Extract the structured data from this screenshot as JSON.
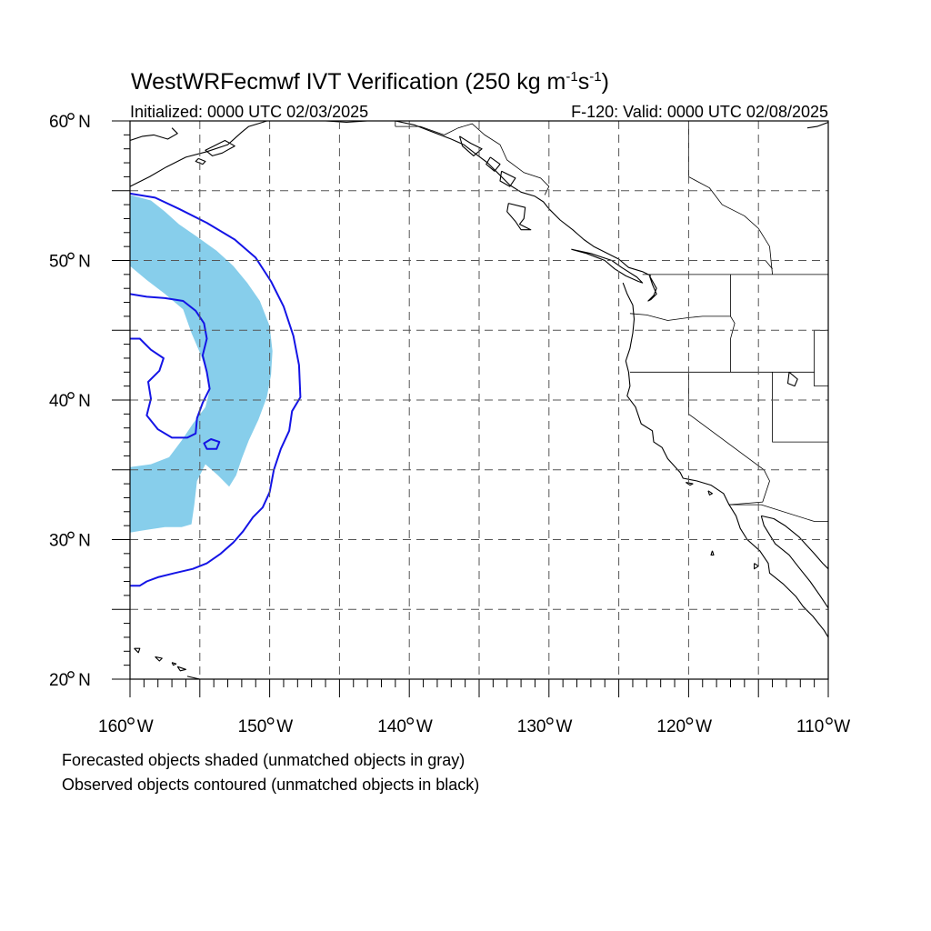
{
  "title": {
    "main": "WestWRFecmwf IVT Verification (250 kg m",
    "exp1": "-1",
    "mid": "s",
    "exp2": "-1",
    "close": ")"
  },
  "init_label": "Initialized: 0000 UTC 02/03/2025",
  "valid_label": "F-120: Valid: 0000 UTC 02/08/2025",
  "lat_ticks": [
    {
      "value": 60,
      "label": "60",
      "suffix": "N"
    },
    {
      "value": 50,
      "label": "50",
      "suffix": "N"
    },
    {
      "value": 40,
      "label": "40",
      "suffix": "N"
    },
    {
      "value": 30,
      "label": "30",
      "suffix": "N"
    },
    {
      "value": 20,
      "label": "20",
      "suffix": "N"
    }
  ],
  "lon_ticks": [
    {
      "value": -160,
      "label": "160",
      "suffix": "W"
    },
    {
      "value": -150,
      "label": "150",
      "suffix": "W"
    },
    {
      "value": -140,
      "label": "140",
      "suffix": "W"
    },
    {
      "value": -130,
      "label": "130",
      "suffix": "W"
    },
    {
      "value": -120,
      "label": "120",
      "suffix": "W"
    },
    {
      "value": -110,
      "label": "110",
      "suffix": "W"
    }
  ],
  "extent": {
    "lon": [
      -160,
      -110
    ],
    "lat": [
      20,
      60
    ]
  },
  "colors": {
    "forecast_fill": "#87CEEB",
    "observed_contour": "#1414E6",
    "coastline": "#000000",
    "gridline": "#555555"
  },
  "forecast_object": [
    [
      -160,
      54.7
    ],
    [
      -158.5,
      54.3
    ],
    [
      -157.5,
      53.5
    ],
    [
      -156.5,
      52.6
    ],
    [
      -155.2,
      51.7
    ],
    [
      -153.8,
      50.7
    ],
    [
      -152.6,
      49.6
    ],
    [
      -151.6,
      48.4
    ],
    [
      -150.7,
      47.1
    ],
    [
      -150.0,
      45.3
    ],
    [
      -149.8,
      43.5
    ],
    [
      -149.9,
      41.8
    ],
    [
      -150.2,
      40.2
    ],
    [
      -150.8,
      38.6
    ],
    [
      -151.5,
      37.1
    ],
    [
      -152.0,
      35.8
    ],
    [
      -152.4,
      34.6
    ],
    [
      -152.9,
      33.8
    ],
    [
      -153.7,
      34.6
    ],
    [
      -154.6,
      35.4
    ],
    [
      -155.2,
      34.2
    ],
    [
      -155.4,
      32.5
    ],
    [
      -155.6,
      31.1
    ],
    [
      -156.3,
      30.9
    ],
    [
      -157.5,
      30.9
    ],
    [
      -158.8,
      30.7
    ],
    [
      -160,
      30.5
    ],
    [
      -160,
      35.2
    ],
    [
      -158.5,
      35.4
    ],
    [
      -157.2,
      35.9
    ],
    [
      -156.3,
      37.1
    ],
    [
      -155.5,
      38.3
    ],
    [
      -154.6,
      39.5
    ],
    [
      -154.3,
      40.7
    ],
    [
      -154.5,
      42.0
    ],
    [
      -155.0,
      43.4
    ],
    [
      -155.6,
      44.8
    ],
    [
      -156.2,
      46.5
    ],
    [
      -157.5,
      47.6
    ],
    [
      -158.8,
      48.6
    ],
    [
      -160,
      49.6
    ]
  ],
  "observed_objects": [
    {
      "closed": false,
      "points": [
        [
          -160,
          54.8
        ],
        [
          -158.2,
          54.5
        ],
        [
          -156.5,
          53.7
        ],
        [
          -154.5,
          52.7
        ],
        [
          -152.5,
          51.5
        ],
        [
          -151.0,
          50.2
        ],
        [
          -149.9,
          48.5
        ],
        [
          -149.0,
          46.7
        ],
        [
          -148.3,
          44.6
        ],
        [
          -147.9,
          42.5
        ],
        [
          -147.8,
          40.2
        ],
        [
          -148.4,
          39.2
        ],
        [
          -148.6,
          37.8
        ],
        [
          -149.2,
          36.5
        ],
        [
          -149.7,
          35.0
        ],
        [
          -150.0,
          33.4
        ],
        [
          -150.5,
          32.3
        ],
        [
          -151.2,
          31.6
        ],
        [
          -151.9,
          30.6
        ],
        [
          -152.6,
          29.8
        ],
        [
          -153.5,
          29.0
        ],
        [
          -154.5,
          28.3
        ],
        [
          -155.5,
          27.9
        ],
        [
          -156.8,
          27.6
        ],
        [
          -158.0,
          27.3
        ],
        [
          -158.8,
          27.0
        ],
        [
          -159.3,
          26.7
        ],
        [
          -160,
          26.7
        ]
      ]
    },
    {
      "closed": false,
      "points": [
        [
          -160,
          47.6
        ],
        [
          -158.8,
          47.4
        ],
        [
          -157.5,
          47.3
        ],
        [
          -156.2,
          47.1
        ],
        [
          -155.3,
          46.4
        ],
        [
          -154.7,
          45.5
        ],
        [
          -154.5,
          44.4
        ],
        [
          -154.8,
          43.2
        ],
        [
          -154.5,
          42.0
        ],
        [
          -154.3,
          40.8
        ],
        [
          -154.8,
          39.8
        ],
        [
          -155.2,
          38.7
        ],
        [
          -155.3,
          37.6
        ],
        [
          -155.9,
          37.3
        ],
        [
          -157.0,
          37.3
        ],
        [
          -158.0,
          37.9
        ],
        [
          -158.8,
          38.9
        ],
        [
          -158.5,
          40.1
        ],
        [
          -158.7,
          41.3
        ],
        [
          -157.9,
          42.1
        ],
        [
          -157.6,
          43.0
        ],
        [
          -158.5,
          43.6
        ],
        [
          -159.3,
          44.4
        ],
        [
          -160,
          44.4
        ]
      ]
    },
    {
      "closed": true,
      "points": [
        [
          -154.2,
          37.2
        ],
        [
          -153.6,
          37.0
        ],
        [
          -153.8,
          36.5
        ],
        [
          -154.5,
          36.5
        ],
        [
          -154.7,
          36.9
        ]
      ]
    }
  ],
  "coastlines": [
    [
      [
        -160,
        55.3
      ],
      [
        -158.6,
        56.0
      ],
      [
        -157.4,
        56.7
      ],
      [
        -156.0,
        57.4
      ],
      [
        -154.5,
        57.8
      ],
      [
        -153.0,
        58.3
      ],
      [
        -152.0,
        59.2
      ],
      [
        -151.5,
        59.6
      ],
      [
        -150.5,
        59.9
      ],
      [
        -150.2,
        60.0
      ]
    ],
    [
      [
        -160,
        58.6
      ],
      [
        -159.1,
        58.9
      ],
      [
        -158.3,
        59.0
      ],
      [
        -157.3,
        58.7
      ],
      [
        -156.6,
        59.1
      ],
      [
        -157.0,
        59.5
      ]
    ],
    [
      [
        -154.0,
        58.2
      ],
      [
        -153.2,
        58.6
      ],
      [
        -152.5,
        58.2
      ],
      [
        -153.4,
        57.7
      ],
      [
        -154.1,
        57.5
      ],
      [
        -154.6,
        57.9
      ],
      [
        -154.0,
        58.2
      ]
    ],
    [
      [
        -155.1,
        57.3
      ],
      [
        -154.6,
        57.1
      ],
      [
        -154.8,
        56.9
      ],
      [
        -155.3,
        57.1
      ],
      [
        -155.1,
        57.3
      ]
    ],
    [
      [
        -146.0,
        60.0
      ],
      [
        -144.5,
        59.9
      ],
      [
        -143.0,
        60.0
      ]
    ],
    [
      [
        -141.0,
        60.0
      ],
      [
        -139.6,
        59.7
      ],
      [
        -138.3,
        59.2
      ],
      [
        -137.0,
        58.7
      ],
      [
        -136.1,
        58.3
      ],
      [
        -135.2,
        57.6
      ],
      [
        -134.4,
        57.0
      ],
      [
        -133.6,
        56.2
      ],
      [
        -132.8,
        55.4
      ],
      [
        -132.0,
        54.9
      ],
      [
        -131.0,
        54.6
      ],
      [
        -130.4,
        54.2
      ],
      [
        -130.0,
        53.7
      ],
      [
        -129.2,
        52.9
      ],
      [
        -128.3,
        52.2
      ],
      [
        -127.5,
        51.5
      ],
      [
        -126.8,
        51.0
      ],
      [
        -126.0,
        50.6
      ],
      [
        -125.0,
        50.1
      ],
      [
        -124.3,
        49.5
      ],
      [
        -123.3,
        49.2
      ],
      [
        -122.7,
        48.9
      ]
    ],
    [
      [
        -136.4,
        58.9
      ],
      [
        -135.6,
        58.4
      ],
      [
        -134.8,
        58.0
      ],
      [
        -135.4,
        57.5
      ],
      [
        -136.2,
        58.2
      ],
      [
        -136.4,
        58.9
      ]
    ],
    [
      [
        -134.2,
        57.4
      ],
      [
        -133.5,
        56.9
      ],
      [
        -133.9,
        56.4
      ],
      [
        -134.5,
        56.9
      ],
      [
        -134.2,
        57.4
      ]
    ],
    [
      [
        -133.4,
        56.4
      ],
      [
        -132.4,
        55.9
      ],
      [
        -132.8,
        55.3
      ],
      [
        -133.5,
        55.7
      ],
      [
        -133.4,
        56.4
      ]
    ],
    [
      [
        -132.9,
        54.1
      ],
      [
        -131.7,
        53.8
      ],
      [
        -131.8,
        53.0
      ],
      [
        -132.1,
        52.6
      ],
      [
        -131.3,
        52.2
      ],
      [
        -132.0,
        52.2
      ],
      [
        -132.4,
        52.8
      ],
      [
        -133.0,
        53.5
      ],
      [
        -132.9,
        54.1
      ]
    ],
    [
      [
        -128.4,
        50.8
      ],
      [
        -127.3,
        50.5
      ],
      [
        -126.0,
        50.0
      ],
      [
        -125.3,
        49.4
      ],
      [
        -124.5,
        48.9
      ],
      [
        -123.6,
        48.5
      ],
      [
        -123.3,
        48.4
      ],
      [
        -123.7,
        48.8
      ],
      [
        -124.8,
        49.5
      ],
      [
        -125.5,
        50.0
      ],
      [
        -127.0,
        50.5
      ],
      [
        -128.4,
        50.8
      ]
    ],
    [
      [
        -124.7,
        48.4
      ],
      [
        -124.4,
        47.6
      ],
      [
        -124.0,
        46.8
      ],
      [
        -123.9,
        45.8
      ],
      [
        -124.0,
        44.8
      ],
      [
        -124.2,
        43.7
      ],
      [
        -124.5,
        42.8
      ],
      [
        -124.3,
        42.0
      ],
      [
        -124.2,
        41.0
      ],
      [
        -124.4,
        40.3
      ],
      [
        -123.8,
        39.5
      ],
      [
        -123.4,
        38.3
      ],
      [
        -122.6,
        37.8
      ],
      [
        -122.5,
        37.0
      ],
      [
        -121.9,
        36.6
      ],
      [
        -121.5,
        35.8
      ],
      [
        -120.6,
        34.8
      ],
      [
        -120.4,
        34.4
      ],
      [
        -119.4,
        34.2
      ],
      [
        -118.4,
        33.9
      ],
      [
        -117.5,
        33.3
      ],
      [
        -117.1,
        32.5
      ],
      [
        -116.6,
        31.7
      ],
      [
        -116.3,
        30.8
      ],
      [
        -115.8,
        30.0
      ],
      [
        -114.9,
        29.2
      ],
      [
        -114.3,
        28.3
      ],
      [
        -114.2,
        27.6
      ],
      [
        -113.2,
        26.8
      ],
      [
        -112.3,
        25.9
      ],
      [
        -111.8,
        25.2
      ],
      [
        -111.1,
        24.5
      ],
      [
        -110.3,
        23.5
      ],
      [
        -110,
        23.0
      ]
    ],
    [
      [
        -122.8,
        48.9
      ],
      [
        -122.6,
        48.3
      ],
      [
        -122.3,
        47.6
      ],
      [
        -122.7,
        47.2
      ],
      [
        -122.9,
        47.1
      ],
      [
        -122.5,
        47.5
      ],
      [
        -122.3,
        48.0
      ],
      [
        -122.8,
        48.9
      ]
    ],
    [
      [
        -114.8,
        31.7
      ],
      [
        -114.6,
        31.0
      ],
      [
        -113.8,
        29.7
      ],
      [
        -112.8,
        28.9
      ],
      [
        -112.1,
        28.0
      ],
      [
        -111.3,
        27.0
      ],
      [
        -110.6,
        26.0
      ],
      [
        -110.0,
        25.1
      ]
    ],
    [
      [
        -110,
        27.9
      ],
      [
        -110.4,
        28.3
      ],
      [
        -111.0,
        29.0
      ],
      [
        -112.1,
        30.2
      ],
      [
        -113.1,
        31.0
      ],
      [
        -113.9,
        31.5
      ],
      [
        -114.8,
        31.7
      ]
    ],
    [
      [
        -120.2,
        34.1
      ],
      [
        -119.7,
        34.0
      ],
      [
        -119.9,
        33.9
      ],
      [
        -120.2,
        34.1
      ]
    ],
    [
      [
        -118.6,
        33.5
      ],
      [
        -118.3,
        33.3
      ],
      [
        -118.5,
        33.2
      ],
      [
        -118.6,
        33.5
      ]
    ],
    [
      [
        -118.3,
        29.2
      ],
      [
        -118.2,
        28.9
      ],
      [
        -118.4,
        28.9
      ],
      [
        -118.3,
        29.2
      ]
    ],
    [
      [
        -115.3,
        28.3
      ],
      [
        -115.0,
        28.1
      ],
      [
        -115.3,
        27.9
      ],
      [
        -115.3,
        28.3
      ]
    ],
    [
      [
        -112.8,
        42.0
      ],
      [
        -112.2,
        41.5
      ],
      [
        -112.4,
        41.0
      ],
      [
        -112.9,
        41.2
      ],
      [
        -112.8,
        42.0
      ]
    ],
    [
      [
        -110,
        59.9
      ],
      [
        -110.8,
        59.6
      ],
      [
        -111.5,
        59.5
      ]
    ],
    [
      [
        -159.7,
        22.2
      ],
      [
        -159.3,
        22.2
      ],
      [
        -159.4,
        21.9
      ],
      [
        -159.7,
        22.2
      ]
    ],
    [
      [
        -158.2,
        21.6
      ],
      [
        -157.7,
        21.5
      ],
      [
        -157.9,
        21.3
      ],
      [
        -158.2,
        21.6
      ]
    ],
    [
      [
        -157.0,
        21.2
      ],
      [
        -156.7,
        21.1
      ],
      [
        -156.9,
        21.0
      ],
      [
        -157.0,
        21.2
      ]
    ],
    [
      [
        -156.6,
        20.9
      ],
      [
        -156.0,
        20.7
      ],
      [
        -156.4,
        20.6
      ],
      [
        -156.6,
        20.9
      ]
    ],
    [
      [
        -155.9,
        20.2
      ],
      [
        -155.0,
        20.0
      ],
      [
        -155.4,
        19.5
      ]
    ]
  ],
  "borders": [
    [
      [
        -141.0,
        60.0
      ],
      [
        -141.0,
        59.6
      ]
    ],
    [
      [
        -141.0,
        59.6
      ],
      [
        -139.2,
        59.6
      ],
      [
        -137.5,
        59.0
      ],
      [
        -136.5,
        59.5
      ],
      [
        -135.5,
        59.8
      ],
      [
        -134.6,
        59.0
      ],
      [
        -133.5,
        58.3
      ],
      [
        -133.0,
        57.2
      ],
      [
        -131.8,
        56.3
      ],
      [
        -130.6,
        55.9
      ],
      [
        -130.0,
        55.3
      ],
      [
        -130.3,
        54.7
      ]
    ],
    [
      [
        -123.3,
        49.0
      ],
      [
        -110,
        49.0
      ]
    ],
    [
      [
        -124.2,
        46.2
      ],
      [
        -123.0,
        46.1
      ],
      [
        -121.5,
        45.7
      ],
      [
        -120.0,
        45.9
      ],
      [
        -119.0,
        46.0
      ],
      [
        -117.0,
        46.0
      ]
    ],
    [
      [
        -117.0,
        49.0
      ],
      [
        -117.0,
        46.0
      ],
      [
        -116.7,
        45.5
      ],
      [
        -117.0,
        44.4
      ],
      [
        -117.0,
        42.0
      ]
    ],
    [
      [
        -124.2,
        42.0
      ],
      [
        -111.0,
        42.0
      ]
    ],
    [
      [
        -120.0,
        42.0
      ],
      [
        -120.0,
        39.0
      ],
      [
        -114.6,
        35.0
      ]
    ],
    [
      [
        -114.0,
        42.0
      ],
      [
        -114.0,
        37.0
      ],
      [
        -110,
        37.0
      ]
    ],
    [
      [
        -111.0,
        45.0
      ],
      [
        -110,
        45.0
      ]
    ],
    [
      [
        -111.0,
        45.0
      ],
      [
        -111.0,
        41.0
      ],
      [
        -110,
        41.0
      ]
    ],
    [
      [
        -114.6,
        35.0
      ],
      [
        -114.2,
        34.2
      ],
      [
        -114.7,
        32.7
      ],
      [
        -117.1,
        32.5
      ]
    ],
    [
      [
        -117.1,
        32.5
      ],
      [
        -114.8,
        32.5
      ],
      [
        -111.0,
        31.3
      ],
      [
        -110,
        31.3
      ]
    ],
    [
      [
        -114.5,
        50.0
      ],
      [
        -114.0,
        49.4
      ]
    ],
    [
      [
        -120.0,
        60.0
      ],
      [
        -120.0,
        56.0
      ]
    ],
    [
      [
        -120.0,
        56.0
      ],
      [
        -118.5,
        55.2
      ],
      [
        -117.6,
        54.0
      ],
      [
        -116.0,
        53.2
      ],
      [
        -115.0,
        52.3
      ],
      [
        -114.2,
        51.0
      ],
      [
        -114.0,
        49.0
      ]
    ]
  ],
  "footnotes": [
    "Forecasted objects shaded (unmatched objects in gray)",
    "Observed objects contoured (unmatched objects in black)"
  ]
}
